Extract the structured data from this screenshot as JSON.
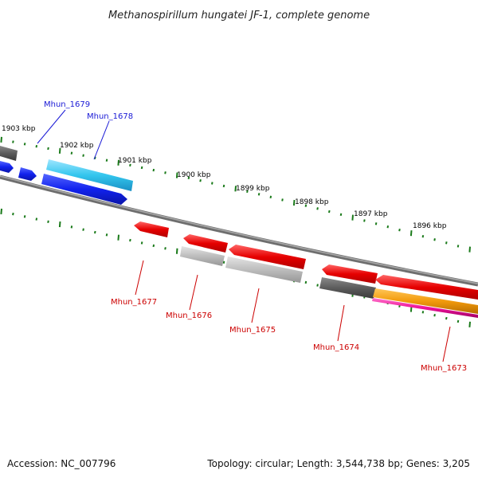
{
  "title": "Methanospirillum hungatei JF-1, complete genome",
  "footer": {
    "accession": "Accession: NC_007796",
    "summary": "Topology: circular; Length: 3,544,738 bp; Genes: 3,205"
  },
  "ruler_labels": [
    "1903 kbp",
    "1902 kbp",
    "1901 kbp",
    "1900 kbp",
    "1899 kbp",
    "1898 kbp",
    "1897 kbp",
    "1896 kbp"
  ],
  "genes": [
    {
      "label": "Mhun_1679",
      "strand": "forward"
    },
    {
      "label": "Mhun_1678",
      "strand": "forward"
    },
    {
      "label": "Mhun_1677",
      "strand": "reverse"
    },
    {
      "label": "Mhun_1676",
      "strand": "reverse"
    },
    {
      "label": "Mhun_1675",
      "strand": "reverse"
    },
    {
      "label": "Mhun_1674",
      "strand": "reverse"
    },
    {
      "label": "Mhun_1673",
      "strand": "reverse"
    }
  ],
  "colors": {
    "forward_gene": "#0a1ee6",
    "forward_cds_light": "#33c6ee",
    "reverse_gene": "#e60000",
    "reverse_cds_gray": "#b5b5b5",
    "dark_feature": "#5c5c5c",
    "orange_feature": "#f29a0c",
    "magenta_feature": "#ee1199",
    "backbone": "#888888",
    "tick": "#1a7a1a"
  }
}
